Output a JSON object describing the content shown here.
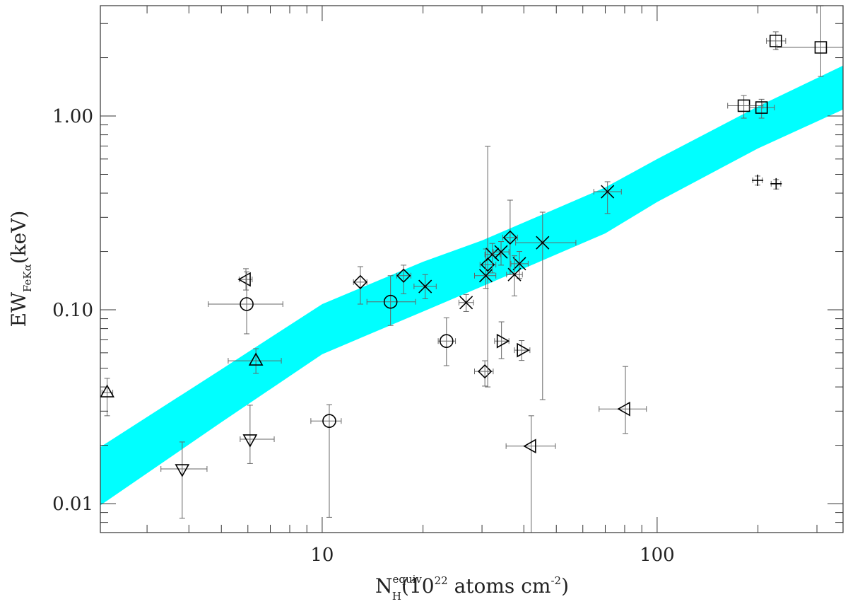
{
  "chart_data": {
    "type": "scatter",
    "xlabel": [
      "N",
      "equiv",
      "H",
      "(10",
      "22",
      " atoms cm",
      "-2",
      ")"
    ],
    "ylabel": [
      "EW",
      "FeKα",
      "(keV)"
    ],
    "xscale": "log",
    "yscale": "log",
    "xlim": [
      2.176,
      359
    ],
    "ylim": [
      0.00709,
      3.71
    ],
    "xticks": [
      10,
      100
    ],
    "yticks": [
      {
        "value": 0.01,
        "label": "0.01"
      },
      {
        "value": 0.1,
        "label": "0.10"
      },
      {
        "value": 1,
        "label": "1.00"
      }
    ],
    "xminorticks": [
      3,
      4,
      5,
      6,
      7,
      8,
      9,
      20,
      30,
      40,
      50,
      60,
      70,
      80,
      90,
      200,
      300
    ],
    "yminorticks": [
      0.008,
      0.009,
      0.02,
      0.03,
      0.04,
      0.05,
      0.06,
      0.07,
      0.08,
      0.09,
      0.2,
      0.3,
      0.4,
      0.5,
      0.6,
      0.7,
      0.8,
      0.9,
      2,
      3
    ],
    "band": {
      "color": "#00ffff",
      "x": [
        2.176,
        5,
        10,
        20,
        30,
        50,
        70,
        100,
        200,
        359
      ],
      "lower": [
        0.0098,
        0.0263,
        0.059,
        0.098,
        0.132,
        0.193,
        0.248,
        0.36,
        0.68,
        1.08
      ],
      "upper": [
        0.0196,
        0.0493,
        0.107,
        0.177,
        0.228,
        0.333,
        0.428,
        0.6,
        1.12,
        1.82
      ]
    },
    "series": [
      {
        "marker": "triangle-up",
        "color": "#000000",
        "x": [
          2.28,
          6.34
        ],
        "values": [
          0.0374,
          0.0546
        ],
        "x_lower": [
          2.2,
          5.24
        ],
        "x_upper": [
          2.37,
          7.55
        ],
        "y_lower": [
          0.0284,
          0.047
        ],
        "y_upper": [
          0.0443,
          0.063
        ]
      },
      {
        "marker": "triangle-down",
        "color": "#000000",
        "x": [
          3.82,
          6.09
        ],
        "values": [
          0.0151,
          0.0215
        ],
        "x_lower": [
          3.3,
          5.69
        ],
        "x_upper": [
          4.53,
          7.19
        ],
        "y_lower": [
          0.0084,
          0.0161
        ],
        "y_upper": [
          0.0208,
          0.0322
        ]
      },
      {
        "marker": "triangle-left",
        "color": "#000000",
        "x": [
          5.92,
          42.1,
          80.4
        ],
        "values": [
          0.1435,
          0.0198,
          0.0308
        ],
        "x_lower": [
          5.65,
          35.4,
          67.1
        ],
        "x_upper": [
          6.18,
          49.7,
          92.9
        ],
        "y_lower": [
          0.1265,
          0.005,
          0.023
        ],
        "y_upper": [
          0.163,
          0.0284,
          0.051
        ]
      },
      {
        "marker": "triangle-right",
        "color": "#000000",
        "x": [
          34.3,
          39.4
        ],
        "values": [
          0.069,
          0.0619
        ],
        "x_lower": [
          32.7,
          37.5
        ],
        "x_upper": [
          36.1,
          41.7
        ],
        "y_lower": [
          0.056,
          0.0548
        ],
        "y_upper": [
          0.0867,
          0.0694
        ]
      },
      {
        "marker": "circle",
        "color": "#000000",
        "x": [
          5.95,
          16.0,
          23.5,
          10.5
        ],
        "values": [
          0.107,
          0.11,
          0.069,
          0.0267
        ],
        "x_lower": [
          4.57,
          13.6,
          22.2,
          9.25
        ],
        "x_upper": [
          7.63,
          19.0,
          25.0,
          11.4
        ],
        "y_lower": [
          0.0752,
          0.083,
          0.0515,
          0.0085
        ],
        "y_upper": [
          0.157,
          0.15,
          0.091,
          0.0324
        ]
      },
      {
        "marker": "diamond",
        "color": "#000000",
        "x": [
          13.0,
          17.5,
          30.6,
          31.2,
          36.4
        ],
        "values": [
          0.139,
          0.15,
          0.0481,
          0.171,
          0.236
        ],
        "x_lower": [
          12.4,
          16.7,
          28.5,
          29.6,
          34.6
        ],
        "x_upper": [
          13.6,
          18.4,
          32.4,
          33.0,
          38.3
        ],
        "y_lower": [
          0.107,
          0.121,
          0.0404,
          0.04,
          0.152
        ],
        "y_upper": [
          0.167,
          0.17,
          0.0546,
          0.697,
          0.368
        ]
      },
      {
        "marker": "cross",
        "color": "#000000",
        "x": [
          20.3,
          26.9,
          30.8,
          32.2,
          34.2,
          38.8,
          37.5,
          45.5,
          71.1
        ],
        "values": [
          0.132,
          0.109,
          0.15,
          0.193,
          0.199,
          0.173,
          0.152,
          0.222,
          0.407
        ],
        "x_lower": [
          18.8,
          25.6,
          28.5,
          30.6,
          32.4,
          36.6,
          35.5,
          37.8,
          64.7
        ],
        "x_upper": [
          21.9,
          28.3,
          33.0,
          34.0,
          36.1,
          41.2,
          39.6,
          57.2,
          78.2
        ],
        "y_lower": [
          0.114,
          0.098,
          0.129,
          0.155,
          0.17,
          0.145,
          0.118,
          0.0344,
          0.314
        ],
        "y_upper": [
          0.152,
          0.12,
          0.206,
          0.22,
          0.225,
          0.2,
          0.19,
          0.319,
          0.458
        ]
      },
      {
        "marker": "square",
        "color": "#000000",
        "x": [
          181.5,
          205,
          226,
          308
        ],
        "values": [
          1.13,
          1.106,
          2.44,
          2.26
        ],
        "x_lower": [
          162.4,
          189,
          212,
          228
        ],
        "x_upper": [
          207,
          224,
          242,
          400
        ],
        "y_lower": [
          0.975,
          0.975,
          2.2,
          1.6
        ],
        "y_upper": [
          1.276,
          1.22,
          2.72,
          3.7
        ]
      },
      {
        "marker": "plus",
        "color": "#000000",
        "x": [
          199.5,
          226.6
        ],
        "values": [
          0.466,
          0.447
        ],
        "x_lower": [
          193,
          219
        ],
        "x_upper": [
          206,
          234
        ],
        "y_lower": [
          0.44,
          0.42
        ],
        "y_upper": [
          0.49,
          0.47
        ]
      }
    ]
  }
}
